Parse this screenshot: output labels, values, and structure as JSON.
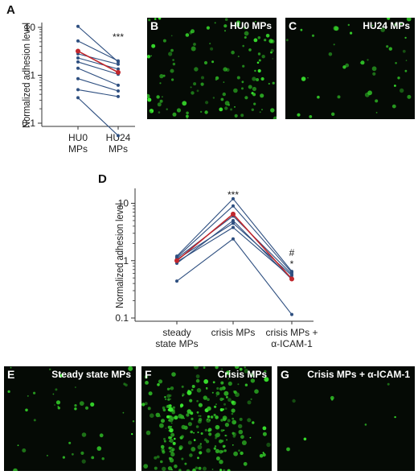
{
  "panels": {
    "A": "A",
    "B": "B",
    "C": "C",
    "D": "D",
    "E": "E",
    "F": "F",
    "G": "G"
  },
  "micrographs": {
    "B": "HU0 MPs",
    "C": "HU24 MPs",
    "E": "Steady state MPs",
    "F": "Crisis MPs",
    "G": "Crisis MPs + α-ICAM-1"
  },
  "chart_data": [
    {
      "panel": "A",
      "type": "line",
      "ylabel": "Normalized adhesion level",
      "yscale": "log",
      "ylim": [
        0.1,
        10
      ],
      "yticks": [
        "10",
        "1",
        "0.1"
      ],
      "categories": [
        "HU0 MPs",
        "HU24 MPs"
      ],
      "category_lines": [
        [
          "HU0",
          "MPs"
        ],
        [
          "HU24",
          "MPs"
        ]
      ],
      "annotation": "***",
      "series": [
        {
          "values": [
            10.5,
            1.9
          ]
        },
        {
          "values": [
            5.2,
            2.0
          ]
        },
        {
          "values": [
            2.8,
            1.7
          ]
        },
        {
          "values": [
            2.3,
            1.35
          ]
        },
        {
          "values": [
            1.9,
            1.05
          ]
        },
        {
          "values": [
            1.4,
            0.62
          ]
        },
        {
          "values": [
            0.85,
            0.47
          ]
        },
        {
          "values": [
            0.5,
            0.36
          ]
        },
        {
          "values": [
            0.34,
            0.055
          ]
        }
      ],
      "mean": {
        "values": [
          3.2,
          1.15
        ]
      },
      "colors": {
        "line": "#2e4f80",
        "mean": "#c1272d"
      }
    },
    {
      "panel": "D",
      "type": "line",
      "ylabel": "Normalized adhesion level",
      "yscale": "log",
      "ylim": [
        0.1,
        15
      ],
      "yticks": [
        "10",
        "1",
        "0.1"
      ],
      "categories": [
        "steady state MPs",
        "crisis MPs",
        "crisis MPs + α-ICAM-1"
      ],
      "category_lines": [
        [
          "steady",
          "state MPs"
        ],
        [
          "crisis MPs"
        ],
        [
          "crisis MPs +",
          "α-ICAM-1"
        ]
      ],
      "annotations": {
        "crisis MPs": "***",
        "crisis MPs + α-ICAM-1": [
          "#",
          "*"
        ]
      },
      "series": [
        {
          "values": [
            1.2,
            12.0,
            0.65
          ]
        },
        {
          "values": [
            1.15,
            9.0,
            0.62
          ]
        },
        {
          "values": [
            1.1,
            6.0,
            0.58
          ]
        },
        {
          "values": [
            1.05,
            4.5,
            0.55
          ]
        },
        {
          "values": [
            0.95,
            3.8,
            0.5
          ]
        },
        {
          "values": [
            0.9,
            5.0,
            0.47
          ]
        },
        {
          "values": [
            0.44,
            2.4,
            0.115
          ]
        }
      ],
      "mean": {
        "values": [
          1.0,
          6.5,
          0.48
        ]
      },
      "colors": {
        "line": "#2e4f80",
        "mean": "#c1272d"
      }
    }
  ]
}
